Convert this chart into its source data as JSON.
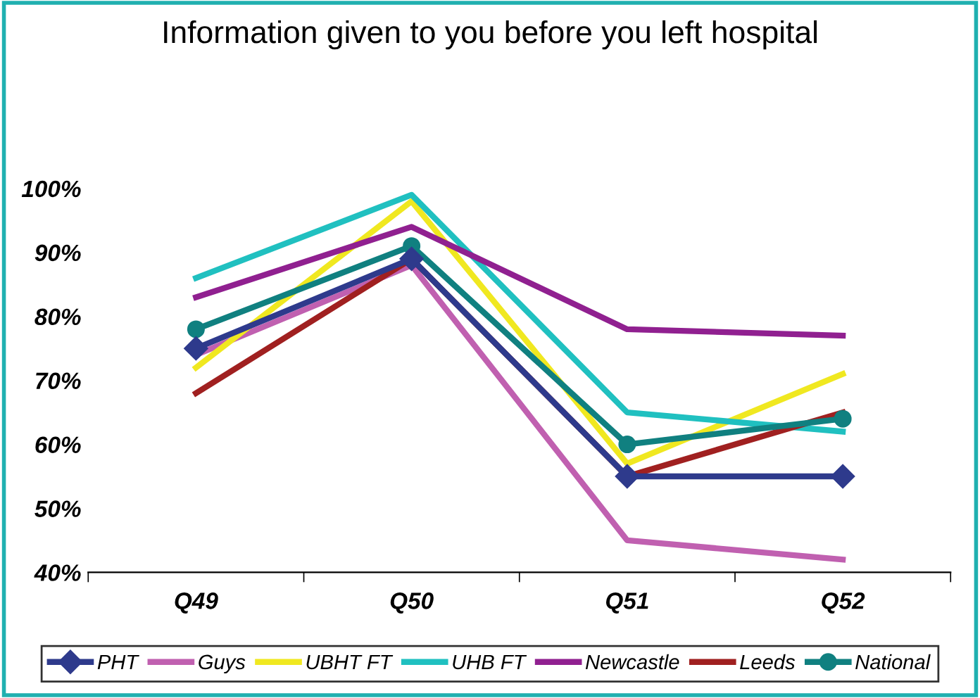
{
  "chart_data": {
    "type": "line",
    "title": "Information given to you before you left hospital",
    "categories": [
      "Q49",
      "Q50",
      "Q51",
      "Q52"
    ],
    "series": [
      {
        "name": "PHT",
        "color": "#2e3a8c",
        "values": [
          75,
          89,
          55,
          55
        ],
        "marker": "diamond"
      },
      {
        "name": "Guys",
        "color": "#c060b0",
        "values": [
          74,
          88,
          45,
          42
        ],
        "marker": "none"
      },
      {
        "name": "UBHT FT",
        "color": "#f0e820",
        "values": [
          72,
          98,
          57,
          71
        ],
        "marker": "none"
      },
      {
        "name": "UHB FT",
        "color": "#20c0c0",
        "values": [
          86,
          99,
          65,
          62
        ],
        "marker": "none"
      },
      {
        "name": "Newcastle",
        "color": "#902090",
        "values": [
          83,
          94,
          78,
          77
        ],
        "marker": "none"
      },
      {
        "name": "Leeds",
        "color": "#a02020",
        "values": [
          68,
          89,
          55,
          65
        ],
        "marker": "none"
      },
      {
        "name": "National",
        "color": "#108080",
        "values": [
          78,
          91,
          60,
          64
        ],
        "marker": "circle"
      }
    ],
    "ylim": [
      40,
      100
    ],
    "yticks": [
      {
        "value": 40,
        "label": "40%"
      },
      {
        "value": 50,
        "label": "50%"
      },
      {
        "value": 60,
        "label": "60%"
      },
      {
        "value": 70,
        "label": "70%"
      },
      {
        "value": 80,
        "label": "80%"
      },
      {
        "value": 90,
        "label": "90%"
      },
      {
        "value": 100,
        "label": "100%"
      }
    ],
    "grid": false,
    "legend": "bottom"
  }
}
